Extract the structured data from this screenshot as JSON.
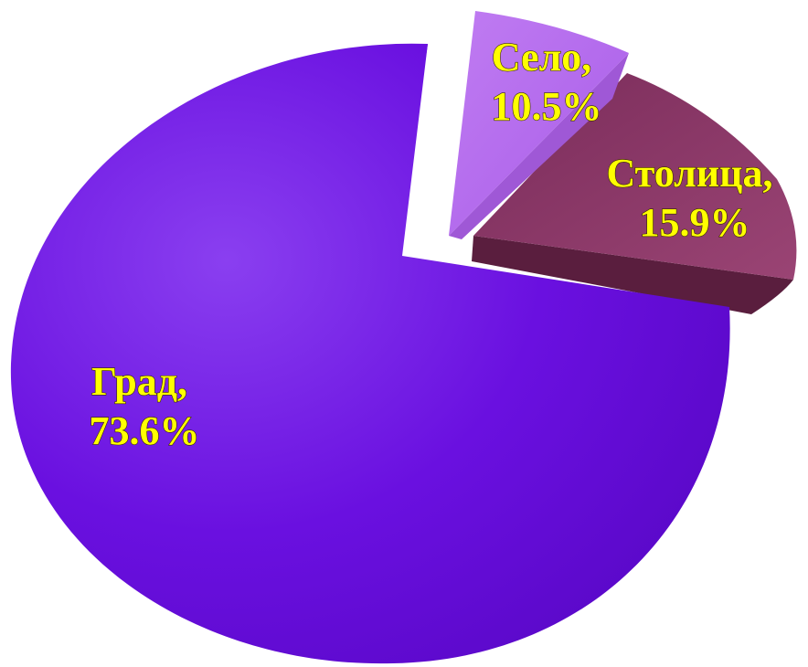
{
  "chart_data": {
    "type": "pie",
    "slices": [
      {
        "name": "Град",
        "value": 73.6,
        "label": "Град,",
        "value_label": "73.6%",
        "color": "#6a10e0",
        "exploded": false
      },
      {
        "name": "Село",
        "value": 10.5,
        "label": "Село,",
        "value_label": "10.5%",
        "color": "#b466ee",
        "exploded": true
      },
      {
        "name": "Столица",
        "value": 15.9,
        "label": "Столица,",
        "value_label": "15.9%",
        "color": "#8a3466",
        "exploded": true
      }
    ],
    "label_color": "#ffff00",
    "legend": "none",
    "style": "3d-exploded"
  }
}
